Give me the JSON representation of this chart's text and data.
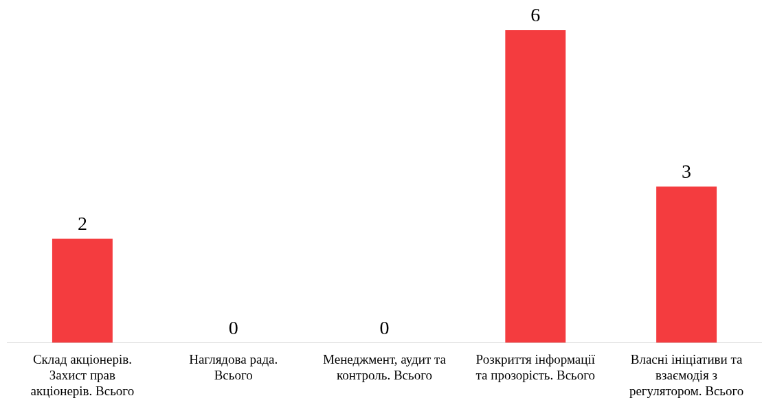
{
  "chart_data": {
    "type": "bar",
    "categories": [
      "Склад акціонерів. Захист прав акціонерів. Всього",
      "Наглядова рада. Всього",
      "Менеджмент, аудит та контроль. Всього",
      "Розкриття інформації та прозорість. Всього",
      "Власні ініціативи та взаємодія з регулятором. Всього"
    ],
    "values": [
      2,
      0,
      0,
      6,
      3
    ],
    "color": "#f43c3f",
    "data_labels": true,
    "legend": false,
    "grid": false
  }
}
